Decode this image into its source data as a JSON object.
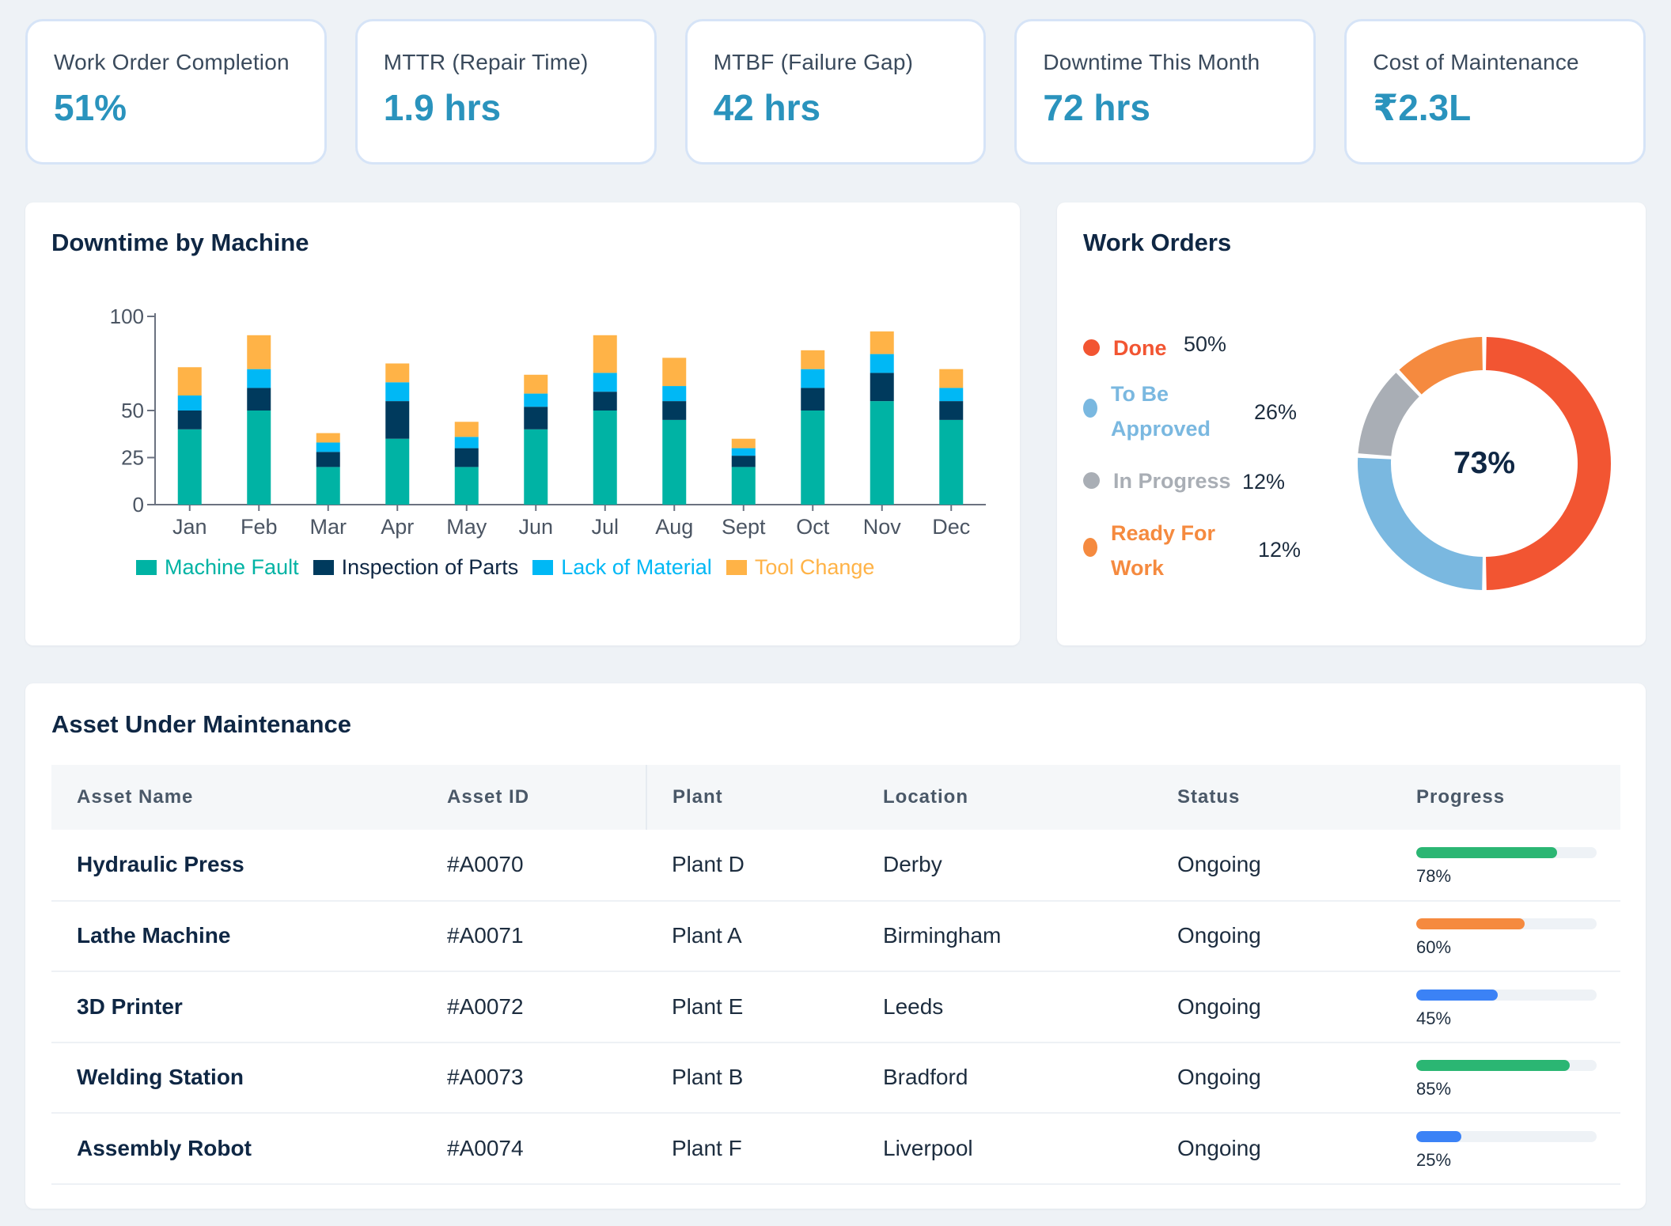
{
  "kpis": [
    {
      "label": "Work Order Completion",
      "value": "51%"
    },
    {
      "label": "MTTR (Repair Time)",
      "value": "1.9 hrs"
    },
    {
      "label": "MTBF (Failure Gap)",
      "value": "42 hrs"
    },
    {
      "label": "Downtime This Month",
      "value": "72 hrs"
    },
    {
      "label": "Cost of Maintenance",
      "value": "₹2.3L"
    }
  ],
  "downtime": {
    "title": "Downtime by Machine"
  },
  "chart_data": {
    "type": "bar",
    "stacked": true,
    "title": "Downtime by Machine",
    "categories": [
      "Jan",
      "Feb",
      "Mar",
      "Apr",
      "May",
      "Jun",
      "Jul",
      "Aug",
      "Sept",
      "Oct",
      "Nov",
      "Dec"
    ],
    "series": [
      {
        "name": "Machine Fault",
        "color": "#00b3a4",
        "values": [
          40,
          50,
          20,
          35,
          20,
          40,
          50,
          45,
          20,
          50,
          55,
          45
        ]
      },
      {
        "name": "Inspection of Parts",
        "color": "#003a5d",
        "values": [
          10,
          12,
          8,
          20,
          10,
          12,
          10,
          10,
          6,
          12,
          15,
          10
        ]
      },
      {
        "name": "Lack of Material",
        "color": "#00b8f5",
        "values": [
          8,
          10,
          5,
          10,
          6,
          7,
          10,
          8,
          4,
          10,
          10,
          7
        ]
      },
      {
        "name": "Tool Change",
        "color": "#ffb347",
        "values": [
          15,
          18,
          5,
          10,
          8,
          10,
          20,
          15,
          5,
          10,
          12,
          10
        ]
      }
    ],
    "yticks": [
      0,
      25,
      50,
      100
    ],
    "ylim": [
      0,
      100
    ],
    "legend_position": "bottom",
    "grid": false
  },
  "work_orders": {
    "title": "Work Orders",
    "center_label": "73%",
    "items": [
      {
        "label": "Done",
        "pct": "50%",
        "value": 50,
        "color": "#f25532"
      },
      {
        "label": "To Be Approved",
        "pct": "26%",
        "value": 26,
        "color": "#7ab8e0"
      },
      {
        "label": "In Progress",
        "pct": "12%",
        "value": 12,
        "color": "#a9aeb5"
      },
      {
        "label": "Ready For Work",
        "pct": "12%",
        "value": 12,
        "color": "#f58a3f"
      }
    ]
  },
  "assets": {
    "title": "Asset Under Maintenance",
    "columns": [
      "Asset Name",
      "Asset ID",
      "Plant",
      "Location",
      "Status",
      "Progress"
    ],
    "rows": [
      {
        "name": "Hydraulic Press",
        "id": "#A0070",
        "plant": "Plant D",
        "location": "Derby",
        "status": "Ongoing",
        "progress_label": "78%",
        "progress": 0.78,
        "color": "#2bb673"
      },
      {
        "name": "Lathe Machine",
        "id": "#A0071",
        "plant": "Plant A",
        "location": "Birmingham",
        "status": "Ongoing",
        "progress_label": "60%",
        "progress": 0.6,
        "color": "#f58a3f"
      },
      {
        "name": "3D Printer",
        "id": "#A0072",
        "plant": "Plant E",
        "location": "Leeds",
        "status": "Ongoing",
        "progress_label": "45%",
        "progress": 0.45,
        "color": "#3b82f6"
      },
      {
        "name": "Welding Station",
        "id": "#A0073",
        "plant": "Plant B",
        "location": "Bradford",
        "status": "Ongoing",
        "progress_label": "85%",
        "progress": 0.85,
        "color": "#2bb673"
      },
      {
        "name": "Assembly Robot",
        "id": "#A0074",
        "plant": "Plant F",
        "location": "Liverpool",
        "status": "Ongoing",
        "progress_label": "25%",
        "progress": 0.25,
        "color": "#3b82f6"
      }
    ]
  }
}
